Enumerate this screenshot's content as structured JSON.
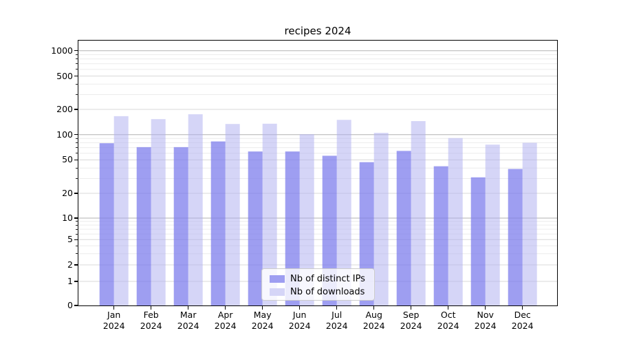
{
  "chart_data": {
    "type": "bar",
    "title": "recipes 2024",
    "categories": [
      "Jan",
      "Feb",
      "Mar",
      "Apr",
      "May",
      "Jun",
      "Jul",
      "Aug",
      "Sep",
      "Oct",
      "Nov",
      "Dec"
    ],
    "category_year": "2024",
    "series": [
      {
        "name": "Nb of distinct IPs",
        "color": "#7878ec",
        "opacity": 0.72,
        "values": [
          79,
          71,
          71,
          83,
          63,
          63,
          56,
          47,
          64,
          42,
          31,
          39
        ]
      },
      {
        "name": "Nb of downloads",
        "color": "#afaff0",
        "opacity": 0.52,
        "values": [
          166,
          153,
          175,
          134,
          135,
          101,
          150,
          105,
          145,
          91,
          76,
          80
        ]
      }
    ],
    "yticks": [
      0,
      1,
      2,
      5,
      10,
      20,
      50,
      100,
      200,
      500,
      1000
    ],
    "yticks_minor": [
      3,
      4,
      6,
      7,
      8,
      9,
      30,
      40,
      60,
      70,
      80,
      90,
      300,
      400,
      600,
      700,
      800,
      900
    ],
    "ylim": [
      0,
      1320
    ],
    "yscale": "symlog",
    "xlabel": "",
    "ylabel": "",
    "grid": true,
    "legend_position": "lower center"
  }
}
